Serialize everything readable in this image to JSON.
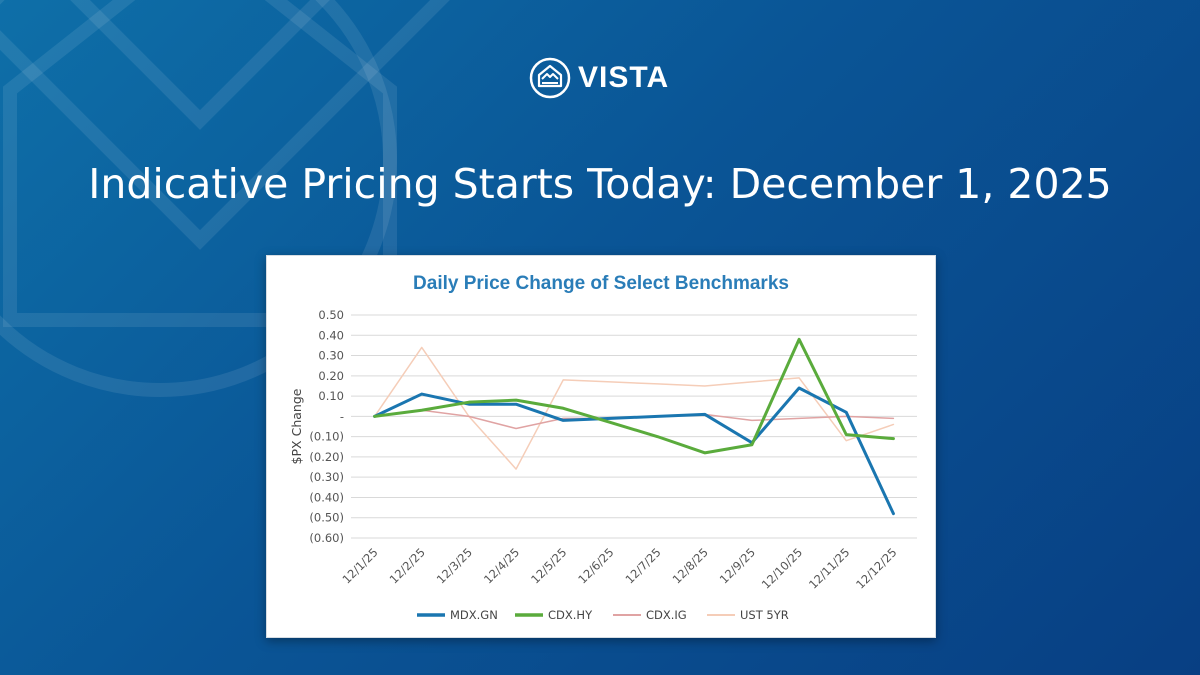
{
  "brand": {
    "name": "VISTA"
  },
  "headline": "Indicative Pricing Starts Today: December 1, 2025",
  "colors": {
    "background_primary": "#0a5596",
    "title_blue": "#2a7db8"
  },
  "chart_data": {
    "type": "line",
    "title": "Daily Price Change of Select Benchmarks",
    "xlabel": "",
    "ylabel": "$PX Change",
    "ylim": [
      -0.6,
      0.5
    ],
    "ticks": [
      0.5,
      0.4,
      0.3,
      0.2,
      0.1,
      0,
      -0.1,
      -0.2,
      -0.3,
      -0.4,
      -0.5,
      -0.6
    ],
    "tick_labels": [
      "0.50",
      "0.40",
      "0.30",
      "0.20",
      "0.10",
      "-",
      "(0.10)",
      "(0.20)",
      "(0.30)",
      "(0.40)",
      "(0.50)",
      "(0.60)"
    ],
    "categories": [
      "12/1/25",
      "12/2/25",
      "12/3/25",
      "12/4/25",
      "12/5/25",
      "12/6/25",
      "12/7/25",
      "12/8/25",
      "12/9/25",
      "12/10/25",
      "12/11/25",
      "12/12/25"
    ],
    "grid": true,
    "legend_position": "bottom",
    "series": [
      {
        "name": "MDX.GN",
        "color": "#1a76b0",
        "width": 3,
        "values": [
          0.0,
          0.11,
          0.06,
          0.06,
          -0.02,
          -0.01,
          0.0,
          0.01,
          -0.13,
          0.14,
          0.02,
          -0.48
        ]
      },
      {
        "name": "CDX.HY",
        "color": "#5aab3c",
        "width": 3,
        "values": [
          0.0,
          0.03,
          0.07,
          0.08,
          0.04,
          -0.03,
          -0.1,
          -0.18,
          -0.14,
          0.38,
          -0.09,
          -0.11
        ]
      },
      {
        "name": "CDX.IG",
        "color": "#e0a3a3",
        "width": 1.5,
        "values": [
          0.0,
          0.03,
          0.0,
          -0.06,
          -0.01,
          -0.01,
          0.0,
          0.01,
          -0.02,
          -0.01,
          0.0,
          -0.01
        ]
      },
      {
        "name": "UST 5YR",
        "color": "#f5cdb8",
        "width": 1.5,
        "values": [
          0.0,
          0.34,
          0.0,
          -0.26,
          0.18,
          0.17,
          0.16,
          0.15,
          0.17,
          0.19,
          -0.12,
          -0.04
        ]
      }
    ]
  }
}
